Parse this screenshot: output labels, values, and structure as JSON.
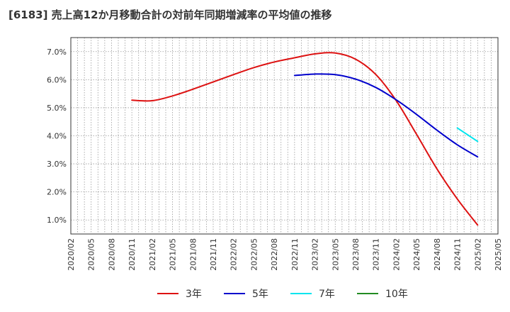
{
  "chart_data": {
    "type": "line",
    "title": "[6183]  売上高12か月移動合計の対前年同期増減率の平均値の推移",
    "xlabel": "",
    "ylabel": "",
    "ylim": [
      0.5,
      7.5
    ],
    "grid": true,
    "legend_position": "bottom",
    "x_ticks": [
      "2020/02",
      "2020/05",
      "2020/08",
      "2020/11",
      "2021/02",
      "2021/05",
      "2021/08",
      "2021/11",
      "2022/02",
      "2022/05",
      "2022/08",
      "2022/11",
      "2023/02",
      "2023/05",
      "2023/08",
      "2023/11",
      "2024/02",
      "2024/05",
      "2024/08",
      "2024/11",
      "2025/02",
      "2025/05"
    ],
    "y_ticks": [
      "1.0%",
      "2.0%",
      "3.0%",
      "4.0%",
      "5.0%",
      "6.0%",
      "7.0%"
    ],
    "y_tick_values": [
      1,
      2,
      3,
      4,
      5,
      6,
      7
    ],
    "series": [
      {
        "name": "3年",
        "color": "#dd1111",
        "points": [
          [
            "2020/11",
            5.27
          ],
          [
            "2021/02",
            5.25
          ],
          [
            "2021/05",
            5.42
          ],
          [
            "2021/08",
            5.66
          ],
          [
            "2021/11",
            5.92
          ],
          [
            "2022/02",
            6.18
          ],
          [
            "2022/05",
            6.43
          ],
          [
            "2022/08",
            6.63
          ],
          [
            "2022/11",
            6.78
          ],
          [
            "2023/02",
            6.92
          ],
          [
            "2023/05",
            6.95
          ],
          [
            "2023/08",
            6.73
          ],
          [
            "2023/11",
            6.18
          ],
          [
            "2024/02",
            5.25
          ],
          [
            "2024/05",
            4.05
          ],
          [
            "2024/08",
            2.82
          ],
          [
            "2024/11",
            1.75
          ],
          [
            "2025/02",
            0.82
          ]
        ]
      },
      {
        "name": "5年",
        "color": "#0000cc",
        "points": [
          [
            "2022/11",
            6.15
          ],
          [
            "2023/02",
            6.2
          ],
          [
            "2023/05",
            6.18
          ],
          [
            "2023/08",
            6.02
          ],
          [
            "2023/11",
            5.72
          ],
          [
            "2024/02",
            5.28
          ],
          [
            "2024/05",
            4.76
          ],
          [
            "2024/08",
            4.2
          ],
          [
            "2024/11",
            3.68
          ],
          [
            "2025/02",
            3.25
          ]
        ]
      },
      {
        "name": "7年",
        "color": "#00e5ee",
        "points": [
          [
            "2024/11",
            4.28
          ],
          [
            "2025/02",
            3.8
          ]
        ]
      },
      {
        "name": "10年",
        "color": "#228b22",
        "points": []
      }
    ]
  }
}
